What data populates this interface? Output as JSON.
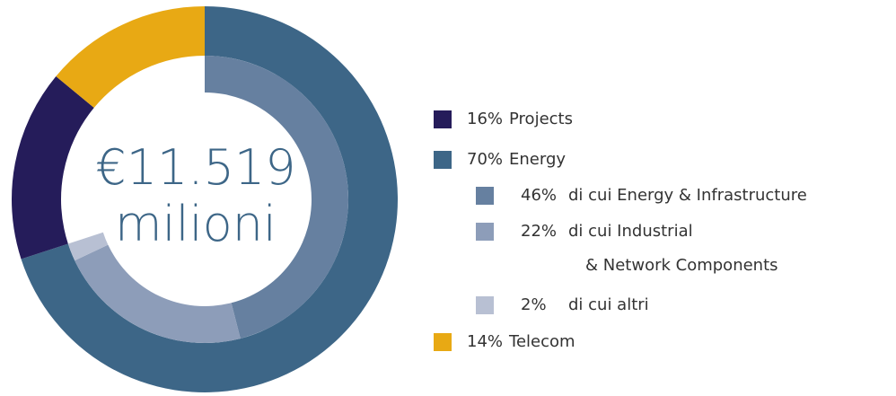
{
  "chart_data": {
    "type": "nested-donut",
    "center_text": [
      "€11.519",
      "milioni"
    ],
    "outer": {
      "categories": [
        "Energy",
        "Projects",
        "Telecom"
      ],
      "values": [
        70,
        16,
        14
      ],
      "value_labels": [
        "70%",
        "16%",
        "14%"
      ],
      "colors": [
        "#3d6687",
        "#251c5a",
        "#e8a914"
      ]
    },
    "inner": {
      "categories": [
        [
          "di cui Energy & Infrastructure"
        ],
        [
          "di cui Industrial",
          "& Network Components"
        ],
        [
          "di cui altri"
        ]
      ],
      "values": [
        46,
        22,
        2
      ],
      "value_labels": [
        "46%",
        "22%",
        "2%"
      ],
      "colors": [
        "#6680a0",
        "#8d9db9",
        "#b8c0d3"
      ]
    }
  }
}
